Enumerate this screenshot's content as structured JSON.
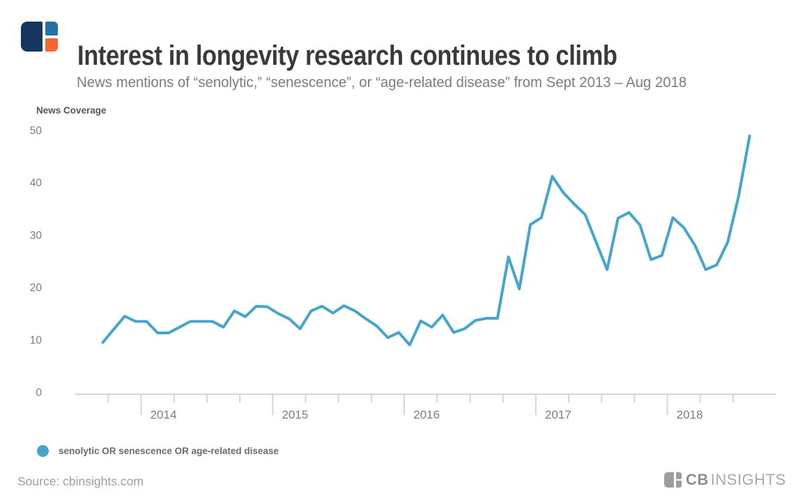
{
  "header": {
    "title": "Interest in longevity research continues to climb",
    "subtitle": "News mentions of “senolytic,” “senescence”, or “age-related disease” from Sept 2013 – Aug 2018"
  },
  "chart_data": {
    "type": "line",
    "ylabel": "News Coverage",
    "xlabel": "",
    "ylim": [
      0,
      50
    ],
    "y_ticks": [
      0,
      10,
      20,
      30,
      40,
      50
    ],
    "x_year_labels": [
      "2014",
      "2015",
      "2016",
      "2017",
      "2018"
    ],
    "x_minor_ticks": "quarterly, long tick at each January",
    "grid": "off",
    "legend_position": "bottom-left",
    "x": [
      "Sep 2013",
      "Oct 2013",
      "Nov 2013",
      "Dec 2013",
      "Jan 2014",
      "Feb 2014",
      "Mar 2014",
      "Apr 2014",
      "May 2014",
      "Jun 2014",
      "Jul 2014",
      "Aug 2014",
      "Sep 2014",
      "Oct 2014",
      "Nov 2014",
      "Dec 2014",
      "Jan 2015",
      "Feb 2015",
      "Mar 2015",
      "Apr 2015",
      "May 2015",
      "Jun 2015",
      "Jul 2015",
      "Aug 2015",
      "Sep 2015",
      "Oct 2015",
      "Nov 2015",
      "Dec 2015",
      "Jan 2016",
      "Feb 2016",
      "Mar 2016",
      "Apr 2016",
      "May 2016",
      "Jun 2016",
      "Jul 2016",
      "Aug 2016",
      "Sep 2016",
      "Oct 2016",
      "Nov 2016",
      "Dec 2016",
      "Jan 2017",
      "Feb 2017",
      "Mar 2017",
      "Apr 2017",
      "May 2017",
      "Jun 2017",
      "Jul 2017",
      "Aug 2017",
      "Sep 2017",
      "Oct 2017",
      "Nov 2017",
      "Dec 2017",
      "Jan 2018",
      "Feb 2018",
      "Mar 2018",
      "Apr 2018",
      "May 2018",
      "Jun 2018",
      "Jul 2018",
      "Aug 2018"
    ],
    "series": [
      {
        "name": "senolytic OR senescence OR age-related disease",
        "values": [
          9.9,
          12.4,
          14.9,
          13.9,
          13.9,
          11.7,
          11.7,
          12.8,
          13.9,
          13.9,
          13.9,
          12.8,
          15.9,
          14.8,
          16.8,
          16.7,
          15.4,
          14.4,
          12.5,
          15.9,
          16.8,
          15.5,
          16.9,
          15.9,
          14.4,
          13.0,
          10.8,
          11.8,
          9.4,
          14.0,
          12.8,
          15.1,
          11.8,
          12.5,
          14.1,
          14.5,
          14.5,
          26.2,
          20.1,
          32.4,
          33.7,
          41.6,
          38.5,
          36.3,
          34.3,
          29.0,
          23.8,
          33.6,
          34.7,
          32.3,
          25.7,
          26.5,
          33.7,
          31.8,
          28.5,
          23.8,
          24.7,
          29.0,
          37.8,
          49.3
        ]
      }
    ],
    "colors": {
      "line": "#45a5cd",
      "axis": "#d6d6d6",
      "tick_label": "#7c7c7c"
    },
    "legend": [
      {
        "label": "senolytic OR senescence OR age-related disease",
        "color": "#45a5cd"
      }
    ]
  },
  "brand": {
    "colors": {
      "navy": "#15365e",
      "blue": "#2471a5",
      "orange": "#f4672e",
      "gray": "#9d9d9d"
    }
  },
  "footer": {
    "source": "Source: cbinsights.com",
    "brand_cb": "CB",
    "brand_insights": "INSIGHTS"
  }
}
